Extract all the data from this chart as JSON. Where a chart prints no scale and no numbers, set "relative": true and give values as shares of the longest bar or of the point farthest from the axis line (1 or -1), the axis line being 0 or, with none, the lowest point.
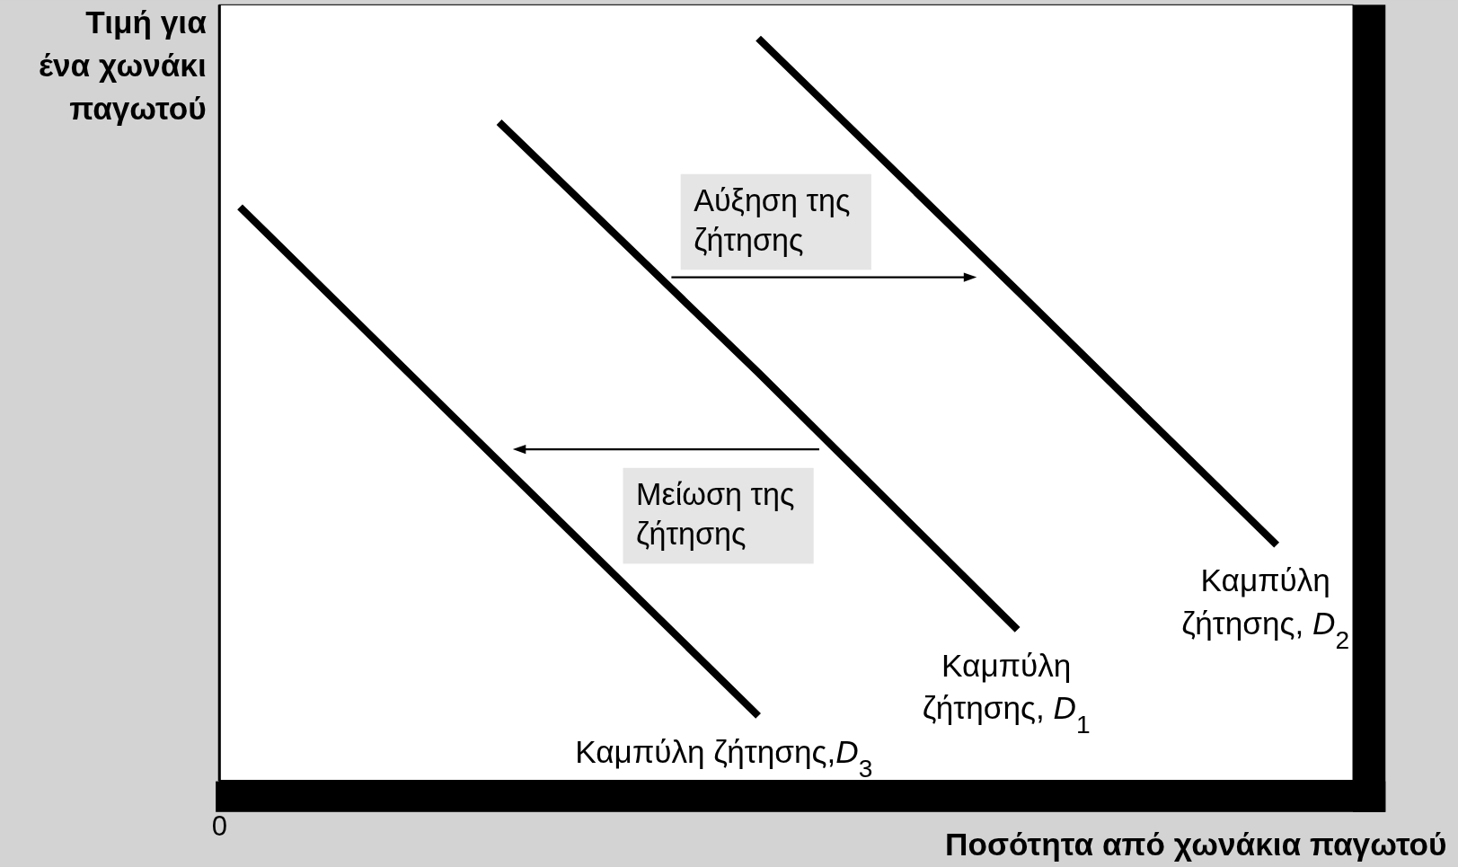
{
  "chart_data": {
    "type": "line",
    "relative": true,
    "xlabel": "Ποσότητα από χωνάκια παγωτού",
    "ylabel": "Τιμή για ένα χωνάκι παγωτού",
    "legend": false,
    "marker": "none",
    "line_style": "solid",
    "grid": false,
    "categories": [
      null,
      null,
      null,
      null,
      null
    ],
    "series": [
      {
        "name": "Καμπύλη ζήτησης, D$_{1}$",
        "color": "#000000",
        "values": [
          null,
          0.887,
          0.55,
          0.204,
          null
        ]
      },
      {
        "name": "Καμπύλη ζήτησης, D$_{2}$",
        "color": "#000000",
        "values": [
          null,
          null,
          1,
          0.66,
          0.318
        ]
      },
      {
        "name": "Καμπύλη ζήτησης,D$_{3}$",
        "color": "#000000",
        "values": [
          0.773,
          0.43,
          0.088,
          null,
          null
        ]
      }
    ],
    "annotations": [
      "Αύξηση της ζήτησης",
      "Μείωση της ζήτησης",
      "0"
    ]
  }
}
